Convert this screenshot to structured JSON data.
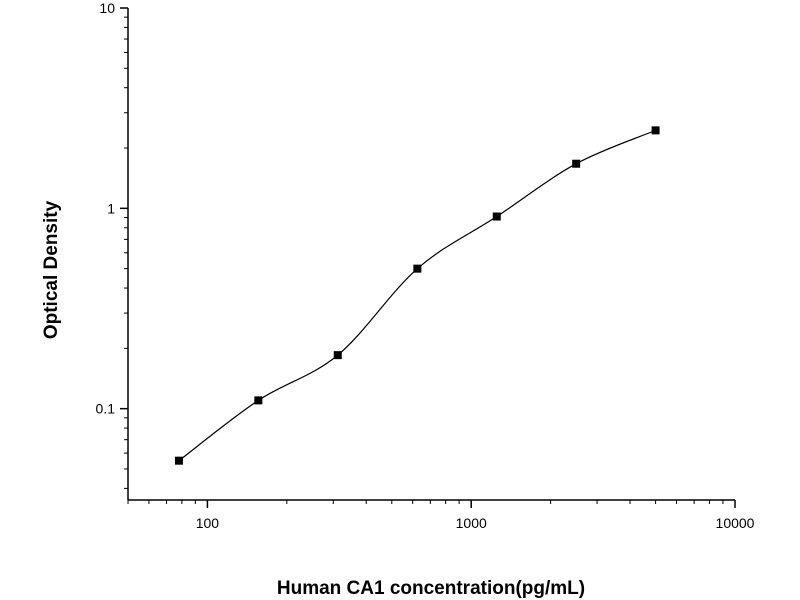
{
  "chart_data": {
    "type": "scatter",
    "xlabel": "Human CA1 concentration(pg/mL)",
    "ylabel": "Optical Density",
    "x_scale": "log",
    "y_scale": "log",
    "xlim": [
      50,
      10000
    ],
    "ylim": [
      0.035,
      10
    ],
    "x_ticks": [
      {
        "value": 100,
        "label": "100"
      },
      {
        "value": 1000,
        "label": "1000"
      },
      {
        "value": 10000,
        "label": "10000"
      }
    ],
    "y_ticks": [
      {
        "value": 0.1,
        "label": "0.1"
      },
      {
        "value": 1,
        "label": "1"
      },
      {
        "value": 10,
        "label": "10"
      }
    ],
    "grid": false,
    "legend": "none",
    "series": [
      {
        "points": [
          {
            "x": 78,
            "y": 0.055
          },
          {
            "x": 156,
            "y": 0.11
          },
          {
            "x": 312,
            "y": 0.185
          },
          {
            "x": 625,
            "y": 0.5
          },
          {
            "x": 1250,
            "y": 0.91
          },
          {
            "x": 2500,
            "y": 1.67
          },
          {
            "x": 5000,
            "y": 2.45
          }
        ],
        "fit_curve": true,
        "marker": "square",
        "color": "#000000"
      }
    ]
  }
}
